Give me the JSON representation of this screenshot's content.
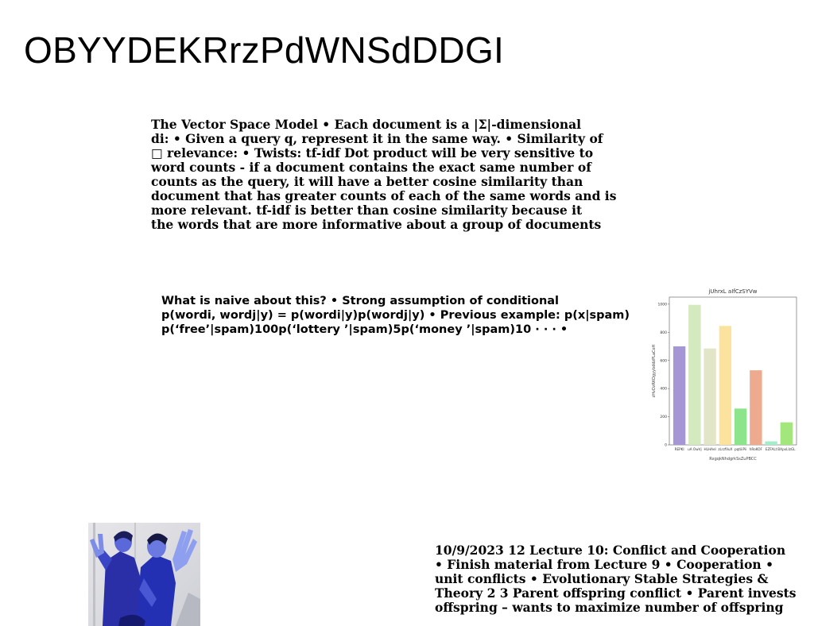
{
  "title": "OBYYDEKRrzPdWNSdDDGI",
  "para1": {
    "lines": [
      "The Vector Space Model • Each document is a |Σ|-dimensional",
      "di: • Given a query q, represent it in the same way. • Similarity of",
      "□ relevance: • Twists:  tf-idf Dot product will be very sensitive to",
      "word counts - if a document contains the exact same number of",
      "counts as the query, it will have a better cosine similarity than",
      "document that has greater counts of each of the same words and is",
      "more relevant. tf-idf is better than cosine similarity because it",
      "the words that are more informative about a group of documents"
    ]
  },
  "para2": {
    "lines": [
      "What is naive about this? • Strong assumption of conditional",
      "p(wordi, wordj|y) = p(wordi|y)p(wordj|y) • Previous example: p(x|spam)",
      "p(‘free’|spam)100p(‘lottery ’|spam)5p(‘money ’|spam)10 · · · •"
    ]
  },
  "para3": {
    "lines": [
      "10/9/2023 12 Lecture 10: Conflict and Cooperation",
      "• Finish material from Lecture 9 • Cooperation •",
      "unit conflicts • Evolutionary Stable Strategies &",
      "Theory 2 3 Parent offspring conflict • Parent invests",
      "offspring – wants to maximize number of offspring"
    ]
  },
  "chart_data": {
    "type": "bar",
    "title": "jUhrxL aIfCzSYVw",
    "xlabel": "RxgqkNhdgrkSsZuPBCC",
    "ylabel": "zHvDzRKOgyybddzPLaCoH",
    "categories": [
      "REPKI",
      "uA OwVj",
      "HLHAel",
      "zLrzfVuX",
      "pqtiiiPii",
      "hRoKOF",
      "EZFALt",
      "BXpxLIzGL"
    ],
    "values": [
      700,
      995,
      685,
      845,
      258,
      530,
      25,
      160
    ],
    "colors": [
      "#a597d6",
      "#d4e9be",
      "#e3e5c9",
      "#fbe39e",
      "#8de58b",
      "#eeaa8e",
      "#a3eec9",
      "#a3e67c"
    ],
    "ylim": [
      0,
      1050
    ],
    "yticks": [
      0,
      200,
      400,
      600,
      800,
      1000
    ],
    "grid": false
  }
}
